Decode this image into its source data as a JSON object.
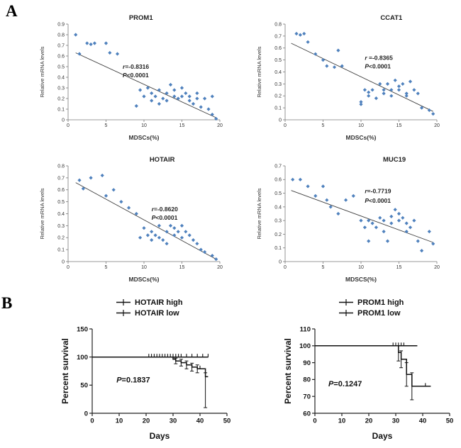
{
  "panels": {
    "a": {
      "label": "A"
    },
    "b": {
      "label": "B"
    }
  },
  "colors": {
    "scatter_point": "#4f81bd",
    "trend_line": "#3f3f3f",
    "km_curve": "#111111",
    "axis": "#7a7a7a"
  },
  "chart_data": [
    {
      "id": "prom1",
      "type": "scatter",
      "title": "PROM1",
      "title_fx": 0.48,
      "xlabel": "MDSCs(%)",
      "ylabel": "Relative mRNA levels",
      "xlim": [
        0,
        20
      ],
      "ylim": [
        0,
        0.9
      ],
      "xticks": [
        0,
        5,
        10,
        15,
        20
      ],
      "xtick_labels": [
        "0",
        "5",
        "10",
        "15",
        "20"
      ],
      "yticks": [
        0,
        0.1,
        0.2,
        0.3,
        0.4,
        0.5,
        0.6,
        0.7,
        0.8,
        0.9
      ],
      "ytick_labels": [
        "0",
        "0.1",
        "0.2",
        "0.3",
        "0.4",
        "0.5",
        "0.6",
        "0.7",
        "0.8",
        "0.9"
      ],
      "point_color": "#4f81bd",
      "trendline": [
        [
          1,
          0.63
        ],
        [
          19.5,
          0.02
        ]
      ],
      "annotation": {
        "x": 7.2,
        "y1": 0.48,
        "y2": 0.4,
        "r_label": "r=-0.8316",
        "p_label": "P<0.0001"
      },
      "points": [
        [
          1,
          0.8
        ],
        [
          1.5,
          0.62
        ],
        [
          2.5,
          0.72
        ],
        [
          3,
          0.71
        ],
        [
          3.5,
          0.72
        ],
        [
          5,
          0.72
        ],
        [
          5.5,
          0.63
        ],
        [
          6.5,
          0.62
        ],
        [
          9,
          0.13
        ],
        [
          9.5,
          0.28
        ],
        [
          10,
          0.22
        ],
        [
          10.5,
          0.3
        ],
        [
          11,
          0.18
        ],
        [
          11,
          0.25
        ],
        [
          11.5,
          0.22
        ],
        [
          12,
          0.15
        ],
        [
          12,
          0.28
        ],
        [
          12.5,
          0.2
        ],
        [
          13,
          0.25
        ],
        [
          13,
          0.18
        ],
        [
          13.5,
          0.33
        ],
        [
          14,
          0.22
        ],
        [
          14,
          0.28
        ],
        [
          14.5,
          0.2
        ],
        [
          15,
          0.3
        ],
        [
          15,
          0.22
        ],
        [
          15.5,
          0.25
        ],
        [
          16,
          0.18
        ],
        [
          16,
          0.22
        ],
        [
          16.5,
          0.15
        ],
        [
          17,
          0.2
        ],
        [
          17,
          0.25
        ],
        [
          17.5,
          0.12
        ],
        [
          18,
          0.2
        ],
        [
          18.5,
          0.1
        ],
        [
          19,
          0.22
        ],
        [
          19,
          0.05
        ],
        [
          19.5,
          0.01
        ]
      ]
    },
    {
      "id": "ccat1",
      "type": "scatter",
      "title": "CCAT1",
      "title_fx": 0.7,
      "xlabel": "MDSCs(%)",
      "ylabel": "Relative mRNA levels",
      "xlim": [
        0,
        20
      ],
      "ylim": [
        0,
        0.8
      ],
      "xticks": [
        0,
        5,
        10,
        15,
        20
      ],
      "xtick_labels": [
        "0",
        "5",
        "10",
        "15",
        "20"
      ],
      "yticks": [
        0,
        0.1,
        0.2,
        0.3,
        0.4,
        0.5,
        0.6,
        0.7,
        0.8
      ],
      "ytick_labels": [
        "0",
        "0.1",
        "0.2",
        "0.3",
        "0.4",
        "0.5",
        "0.6",
        "0.7",
        "0.8"
      ],
      "point_color": "#4f81bd",
      "trendline": [
        [
          0.8,
          0.64
        ],
        [
          19.5,
          0.07
        ]
      ],
      "annotation": {
        "x": 10.5,
        "y1": 0.5,
        "y2": 0.43,
        "r_label": "r =-0.8365",
        "p_label": "P<0.0001"
      },
      "points": [
        [
          1.5,
          0.72
        ],
        [
          2,
          0.71
        ],
        [
          2.5,
          0.72
        ],
        [
          3,
          0.65
        ],
        [
          4,
          0.55
        ],
        [
          5,
          0.5
        ],
        [
          5.5,
          0.45
        ],
        [
          6.5,
          0.44
        ],
        [
          7,
          0.58
        ],
        [
          7.5,
          0.45
        ],
        [
          10,
          0.15
        ],
        [
          10,
          0.13
        ],
        [
          10.5,
          0.25
        ],
        [
          11,
          0.2
        ],
        [
          11,
          0.23
        ],
        [
          11.5,
          0.25
        ],
        [
          12,
          0.18
        ],
        [
          12.5,
          0.3
        ],
        [
          13,
          0.22
        ],
        [
          13,
          0.25
        ],
        [
          13.5,
          0.3
        ],
        [
          14,
          0.2
        ],
        [
          14,
          0.25
        ],
        [
          14.5,
          0.33
        ],
        [
          15,
          0.28
        ],
        [
          15,
          0.25
        ],
        [
          15.5,
          0.3
        ],
        [
          16,
          0.22
        ],
        [
          16,
          0.2
        ],
        [
          16.5,
          0.32
        ],
        [
          17,
          0.25
        ],
        [
          17.5,
          0.22
        ],
        [
          18,
          0.1
        ],
        [
          19,
          0.08
        ],
        [
          19.5,
          0.05
        ]
      ]
    },
    {
      "id": "hotair",
      "type": "scatter",
      "title": "HOTAIR",
      "title_fx": 0.62,
      "xlabel": "MDSCs(%)",
      "ylabel": "Relative mRNA levels",
      "xlim": [
        0,
        20
      ],
      "ylim": [
        0,
        0.8
      ],
      "xticks": [
        0,
        5,
        10,
        15,
        20
      ],
      "xtick_labels": [
        "0",
        "5",
        "10",
        "15",
        "20"
      ],
      "yticks": [
        0,
        0.1,
        0.2,
        0.3,
        0.4,
        0.5,
        0.6,
        0.7,
        0.8
      ],
      "ytick_labels": [
        "0",
        "0.1",
        "0.2",
        "0.3",
        "0.4",
        "0.5",
        "0.6",
        "0.7",
        "0.8"
      ],
      "point_color": "#4f81bd",
      "trendline": [
        [
          1,
          0.66
        ],
        [
          19.5,
          0.02
        ]
      ],
      "annotation": {
        "x": 11,
        "y1": 0.42,
        "y2": 0.35,
        "r_label": "r=-0.8620",
        "p_label": "P<0.0001"
      },
      "points": [
        [
          1.5,
          0.68
        ],
        [
          2,
          0.61
        ],
        [
          3,
          0.7
        ],
        [
          4.5,
          0.72
        ],
        [
          5,
          0.55
        ],
        [
          6,
          0.6
        ],
        [
          7,
          0.5
        ],
        [
          8,
          0.45
        ],
        [
          9,
          0.4
        ],
        [
          9.5,
          0.2
        ],
        [
          10,
          0.28
        ],
        [
          10.5,
          0.22
        ],
        [
          11,
          0.25
        ],
        [
          11,
          0.18
        ],
        [
          11.5,
          0.22
        ],
        [
          12,
          0.3
        ],
        [
          12,
          0.2
        ],
        [
          12.5,
          0.18
        ],
        [
          13,
          0.25
        ],
        [
          13,
          0.15
        ],
        [
          13.5,
          0.3
        ],
        [
          14,
          0.28
        ],
        [
          14,
          0.22
        ],
        [
          14.5,
          0.25
        ],
        [
          15,
          0.3
        ],
        [
          15,
          0.2
        ],
        [
          15.5,
          0.25
        ],
        [
          16,
          0.22
        ],
        [
          16.5,
          0.18
        ],
        [
          17,
          0.15
        ],
        [
          17.5,
          0.1
        ],
        [
          18,
          0.08
        ],
        [
          19,
          0.05
        ],
        [
          19.5,
          0.02
        ]
      ]
    },
    {
      "id": "muc19",
      "type": "scatter",
      "title": "MUC19",
      "title_fx": 0.72,
      "xlabel": "MDSCS(%)",
      "ylabel": "Relative mRNA levels",
      "xlim": [
        0,
        20
      ],
      "ylim": [
        0,
        0.7
      ],
      "xticks": [
        0,
        5,
        10,
        15,
        20
      ],
      "xtick_labels": [
        "0",
        "5",
        "10",
        "15",
        "20"
      ],
      "yticks": [
        0,
        0.1,
        0.2,
        0.3,
        0.4,
        0.5,
        0.6,
        0.7
      ],
      "ytick_labels": [
        "0",
        "0.1",
        "0.2",
        "0.3",
        "0.4",
        "0.5",
        "0.6",
        "0.7"
      ],
      "point_color": "#4f81bd",
      "trendline": [
        [
          0.8,
          0.52
        ],
        [
          19.5,
          0.14
        ]
      ],
      "annotation": {
        "x": 10.5,
        "y1": 0.5,
        "y2": 0.43,
        "r_label": "r=-0.7719",
        "p_label": "P<0.0001"
      },
      "points": [
        [
          1,
          0.6
        ],
        [
          2,
          0.6
        ],
        [
          3,
          0.55
        ],
        [
          4,
          0.48
        ],
        [
          5,
          0.55
        ],
        [
          5.5,
          0.45
        ],
        [
          6,
          0.4
        ],
        [
          7,
          0.35
        ],
        [
          8,
          0.45
        ],
        [
          9,
          0.48
        ],
        [
          10,
          0.3
        ],
        [
          10.5,
          0.25
        ],
        [
          11,
          0.15
        ],
        [
          11,
          0.3
        ],
        [
          11.5,
          0.28
        ],
        [
          12,
          0.25
        ],
        [
          12.5,
          0.32
        ],
        [
          13,
          0.3
        ],
        [
          13,
          0.22
        ],
        [
          13.5,
          0.15
        ],
        [
          14,
          0.33
        ],
        [
          14,
          0.28
        ],
        [
          14.5,
          0.38
        ],
        [
          15,
          0.35
        ],
        [
          15,
          0.3
        ],
        [
          15.5,
          0.32
        ],
        [
          16,
          0.28
        ],
        [
          16,
          0.22
        ],
        [
          16.5,
          0.25
        ],
        [
          17,
          0.3
        ],
        [
          17.5,
          0.15
        ],
        [
          18,
          0.08
        ],
        [
          19,
          0.22
        ],
        [
          19.5,
          0.13
        ]
      ]
    },
    {
      "id": "km_hotair",
      "type": "km",
      "xlabel": "Days",
      "ylabel": "Percent survival",
      "xlim": [
        0,
        50
      ],
      "ylim": [
        0,
        150
      ],
      "xticks": [
        0,
        10,
        20,
        30,
        40,
        50
      ],
      "xtick_labels": [
        "0",
        "10",
        "20",
        "30",
        "40",
        "50"
      ],
      "yticks": [
        0,
        50,
        100,
        150
      ],
      "ytick_labels": [
        "0",
        "50",
        "100",
        "150"
      ],
      "p_label": "P=0.1837",
      "p_x": 9,
      "p_y": 55,
      "curve_color": "#111111",
      "legend": [
        {
          "label": "HOTAIR high"
        },
        {
          "label": "HOTAIR low"
        }
      ],
      "series": [
        {
          "name": "HOTAIR high",
          "steps": [
            [
              0,
              100
            ],
            [
              30,
              96
            ],
            [
              31,
              93
            ],
            [
              33,
              90
            ],
            [
              35,
              86
            ],
            [
              37,
              82
            ],
            [
              39,
              79
            ],
            [
              42,
              65
            ]
          ],
          "end_x": 43,
          "censors": [
            [
              40,
              79
            ]
          ],
          "errors": [
            [
              31,
              88,
              98
            ],
            [
              33,
              84,
              96
            ],
            [
              35,
              79,
              93
            ],
            [
              37,
              75,
              89
            ],
            [
              39,
              72,
              86
            ],
            [
              42,
              10,
              72
            ]
          ]
        },
        {
          "name": "HOTAIR low",
          "steps": [
            [
              0,
              100
            ]
          ],
          "end_x": 43,
          "censors": [
            [
              21,
              100
            ],
            [
              22,
              100
            ],
            [
              23,
              100
            ],
            [
              24,
              100
            ],
            [
              25,
              100
            ],
            [
              26,
              100
            ],
            [
              27,
              100
            ],
            [
              28,
              100
            ],
            [
              29,
              100
            ],
            [
              30,
              100
            ],
            [
              31,
              100
            ],
            [
              32,
              100
            ],
            [
              33,
              100
            ],
            [
              35,
              100
            ],
            [
              37,
              100
            ],
            [
              39,
              100
            ],
            [
              41,
              100
            ],
            [
              43,
              100
            ]
          ],
          "errors": []
        }
      ]
    },
    {
      "id": "km_prom1",
      "type": "km",
      "xlabel": "Days",
      "ylabel": "Percent survival",
      "xlim": [
        0,
        50
      ],
      "ylim": [
        60,
        110
      ],
      "xticks": [
        0,
        10,
        20,
        30,
        40,
        50
      ],
      "xtick_labels": [
        "0",
        "10",
        "20",
        "30",
        "40",
        "50"
      ],
      "yticks": [
        60,
        70,
        80,
        90,
        100,
        110
      ],
      "ytick_labels": [
        "60",
        "70",
        "80",
        "90",
        "100",
        "110"
      ],
      "p_label": "P=0.1247",
      "p_x": 5,
      "p_y": 76,
      "curve_color": "#111111",
      "legend": [
        {
          "label": "PROM1 high"
        },
        {
          "label": "PROM1 low"
        }
      ],
      "series": [
        {
          "name": "PROM1 high",
          "steps": [
            [
              0,
              100
            ],
            [
              31,
              96
            ],
            [
              32,
              92
            ],
            [
              34,
              83
            ],
            [
              36,
              76
            ]
          ],
          "end_x": 43,
          "censors": [
            [
              41,
              76
            ]
          ],
          "errors": [
            [
              31,
              91,
              100
            ],
            [
              32,
              87,
              97
            ],
            [
              34,
              76,
              90
            ],
            [
              36,
              68,
              84
            ]
          ]
        },
        {
          "name": "PROM1 low",
          "steps": [
            [
              0,
              100
            ]
          ],
          "end_x": 38,
          "censors": [
            [
              29,
              100
            ],
            [
              30,
              100
            ],
            [
              31,
              100
            ],
            [
              32,
              100
            ],
            [
              33,
              100
            ]
          ],
          "errors": []
        }
      ]
    }
  ]
}
